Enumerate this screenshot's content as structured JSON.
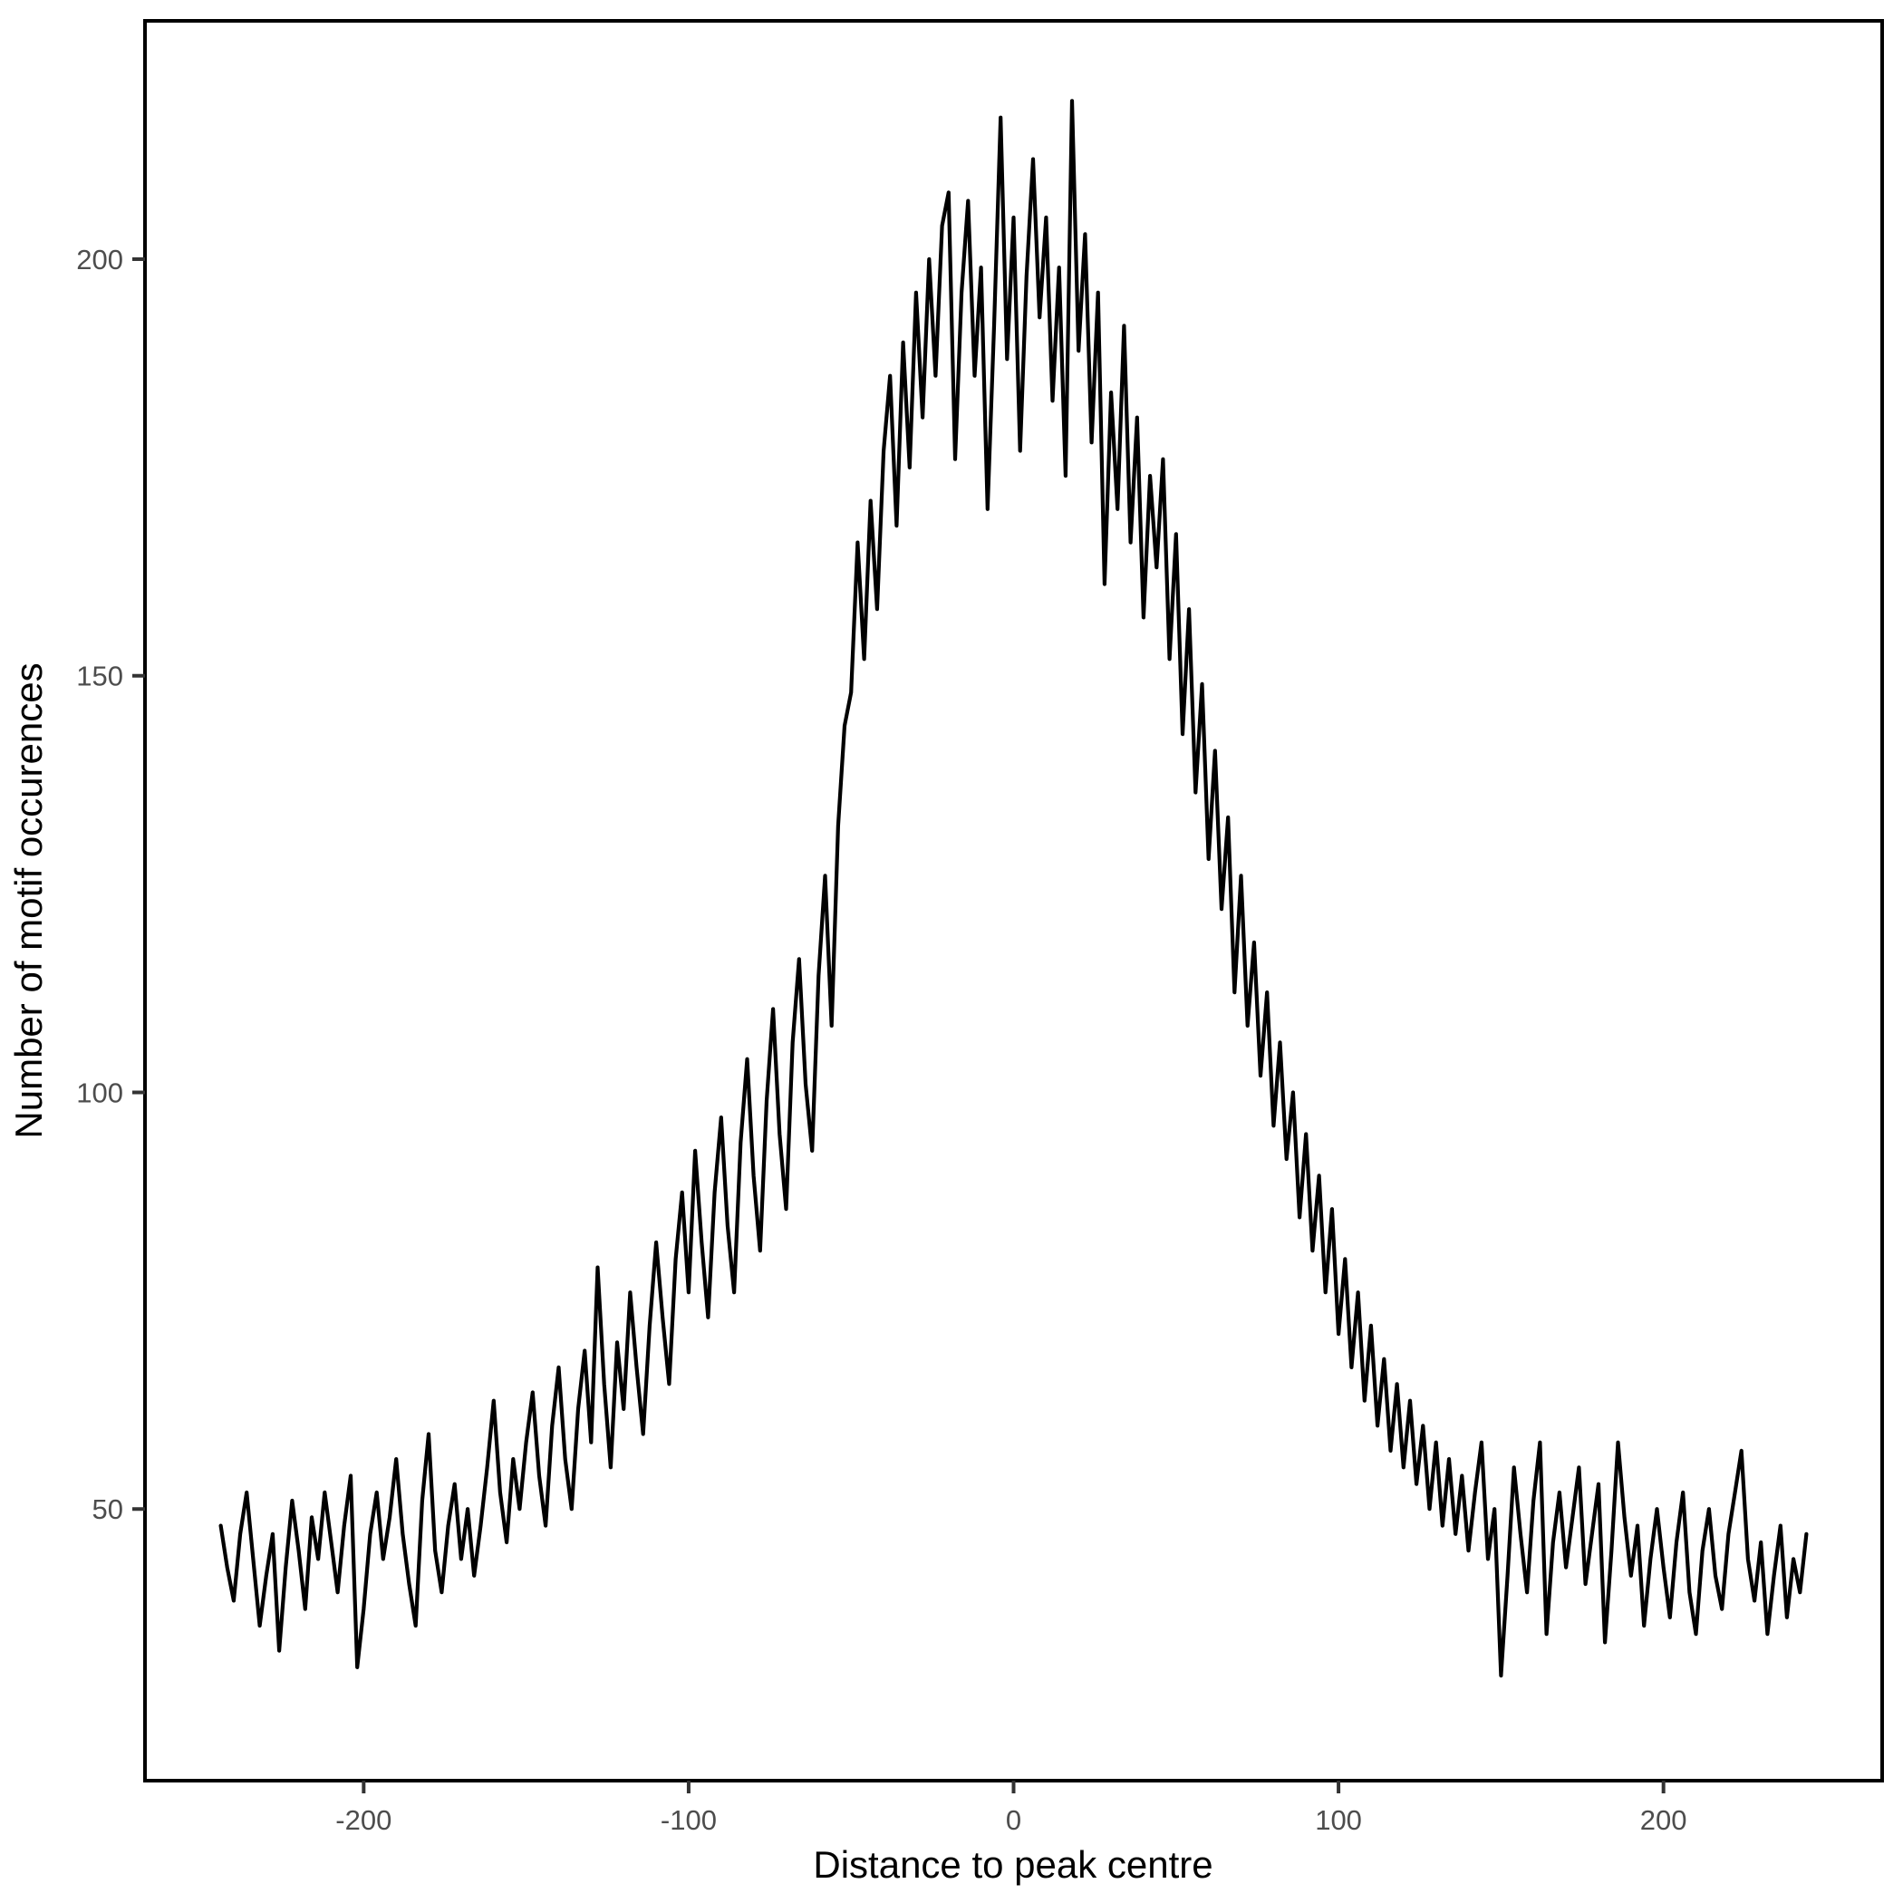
{
  "page": {
    "background": "#ffffff"
  },
  "chart_data": {
    "type": "line",
    "title": "",
    "xlabel": "Distance to peak centre",
    "ylabel": "Number of motif occurences",
    "x_ticks": [
      -200,
      -100,
      0,
      100,
      200
    ],
    "x_tick_labels": [
      "-200",
      "-100",
      "0",
      "100",
      "200"
    ],
    "y_ticks": [
      50,
      100,
      150,
      200
    ],
    "y_tick_labels": [
      "50",
      "100",
      "150",
      "200"
    ],
    "xlim": [
      -267.3,
      267.3
    ],
    "ylim": [
      17.4,
      228.6
    ],
    "grid": false,
    "legend": "none",
    "line_color": "#000000",
    "panel_border_color": "#000000",
    "tick_color": "#333333",
    "tick_label_color": "#4d4d4d",
    "axis_title_color": "#000000",
    "x_start": -244,
    "x_step": 2,
    "values": [
      48,
      43,
      39,
      47,
      52,
      44,
      36,
      42,
      47,
      33,
      43,
      51,
      45,
      38,
      49,
      44,
      52,
      46,
      40,
      48,
      54,
      31,
      38,
      47,
      52,
      44,
      49,
      56,
      47,
      41,
      36,
      51,
      59,
      45,
      40,
      48,
      53,
      44,
      50,
      42,
      48,
      55,
      63,
      52,
      46,
      56,
      50,
      58,
      64,
      54,
      48,
      60,
      67,
      56,
      50,
      62,
      69,
      58,
      79,
      65,
      55,
      70,
      62,
      76,
      67,
      59,
      72,
      82,
      73,
      65,
      80,
      88,
      76,
      93,
      82,
      73,
      88,
      97,
      84,
      76,
      94,
      104,
      90,
      81,
      99,
      110,
      95,
      86,
      106,
      116,
      101,
      93,
      114,
      126,
      108,
      132,
      144,
      148,
      166,
      152,
      171,
      158,
      177,
      186,
      168,
      190,
      175,
      196,
      181,
      200,
      186,
      204,
      208,
      176,
      196,
      207,
      186,
      199,
      170,
      192,
      217,
      188,
      205,
      177,
      198,
      212,
      193,
      205,
      183,
      199,
      174,
      219,
      189,
      203,
      178,
      196,
      161,
      184,
      170,
      192,
      166,
      181,
      157,
      174,
      163,
      176,
      152,
      167,
      143,
      158,
      136,
      149,
      128,
      141,
      122,
      133,
      112,
      126,
      108,
      118,
      102,
      112,
      96,
      106,
      92,
      100,
      85,
      95,
      81,
      90,
      76,
      86,
      71,
      80,
      67,
      76,
      63,
      72,
      60,
      68,
      57,
      65,
      55,
      63,
      53,
      60,
      50,
      58,
      48,
      56,
      47,
      54,
      45,
      52,
      58,
      44,
      50,
      30,
      42,
      55,
      47,
      40,
      51,
      58,
      35,
      46,
      52,
      43,
      49,
      55,
      41,
      47,
      53,
      34,
      45,
      58,
      49,
      42,
      48,
      36,
      44,
      50,
      43,
      37,
      46,
      52,
      40,
      35,
      45,
      50,
      42,
      38,
      47,
      52,
      57,
      44,
      39,
      46,
      35,
      42,
      48,
      37,
      44,
      40,
      47
    ]
  }
}
